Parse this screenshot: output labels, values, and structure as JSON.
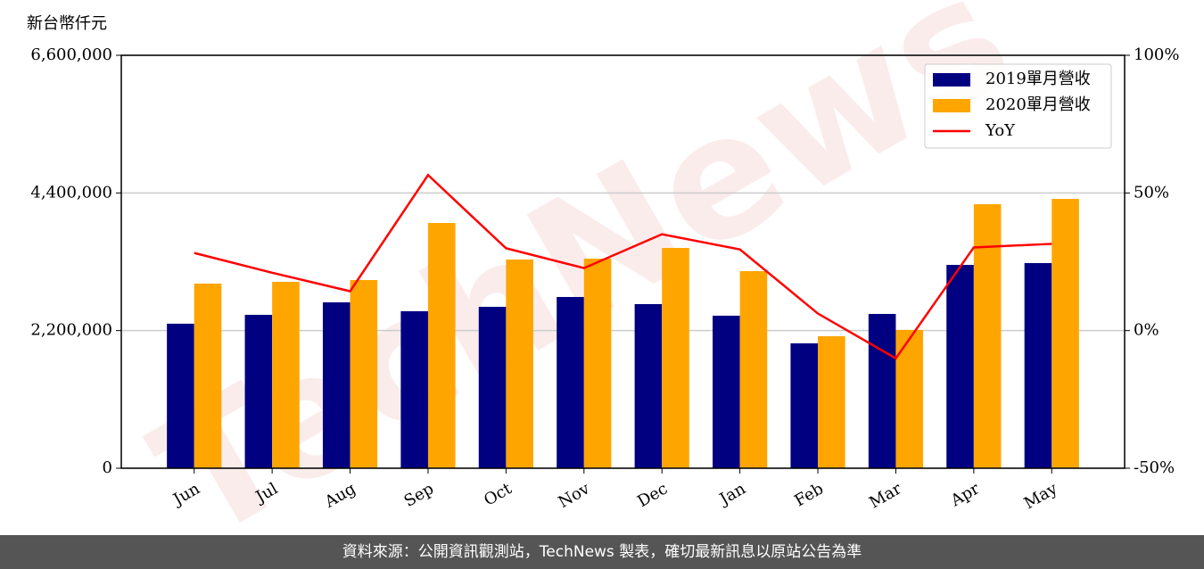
{
  "chart_data": {
    "type": "bar_line",
    "y_label": "新台幣仟元",
    "watermark": "TechNews",
    "categories": [
      "Jun",
      "Jul",
      "Aug",
      "Sep",
      "Oct",
      "Nov",
      "Dec",
      "Jan",
      "Feb",
      "Mar",
      "Apr",
      "May"
    ],
    "series": [
      {
        "name": "2019單月營收",
        "type": "bar",
        "color": "#000080",
        "values": [
          2310000,
          2452000,
          2651000,
          2509000,
          2580000,
          2737000,
          2623000,
          2438000,
          1996000,
          2466000,
          3250000,
          3279000
        ]
      },
      {
        "name": "2020單月營收",
        "type": "bar",
        "color": "#ffa500",
        "values": [
          2951000,
          2979000,
          3008000,
          3920000,
          3336000,
          3350000,
          3521000,
          3150000,
          2110000,
          2210000,
          4220000,
          4305000
        ]
      },
      {
        "name": "YoY",
        "type": "line",
        "axis": "y2",
        "color": "#ff0000",
        "values": [
          28.2,
          21,
          14.3,
          56.5,
          29.9,
          22.7,
          35,
          29.5,
          6.2,
          -10.1,
          30.2,
          31.5
        ]
      }
    ],
    "ylim": [
      0,
      6600000
    ],
    "yticks": [
      {
        "value": 0,
        "label": "0"
      },
      {
        "value": 2200000,
        "label": "2,200,000"
      },
      {
        "value": 4400000,
        "label": "4,400,000"
      },
      {
        "value": 6600000,
        "label": "6,600,000"
      }
    ],
    "y2lim": [
      -50,
      100
    ],
    "y2ticks": [
      {
        "value": -50,
        "label": "-50%"
      },
      {
        "value": 0,
        "label": "0%"
      },
      {
        "value": 50,
        "label": "50%"
      },
      {
        "value": 100,
        "label": "100%"
      }
    ],
    "grid": true,
    "legend": "upper right"
  },
  "footer": "資料來源：公開資訊觀測站，TechNews 製表，確切最新訊息以原站公告為準"
}
